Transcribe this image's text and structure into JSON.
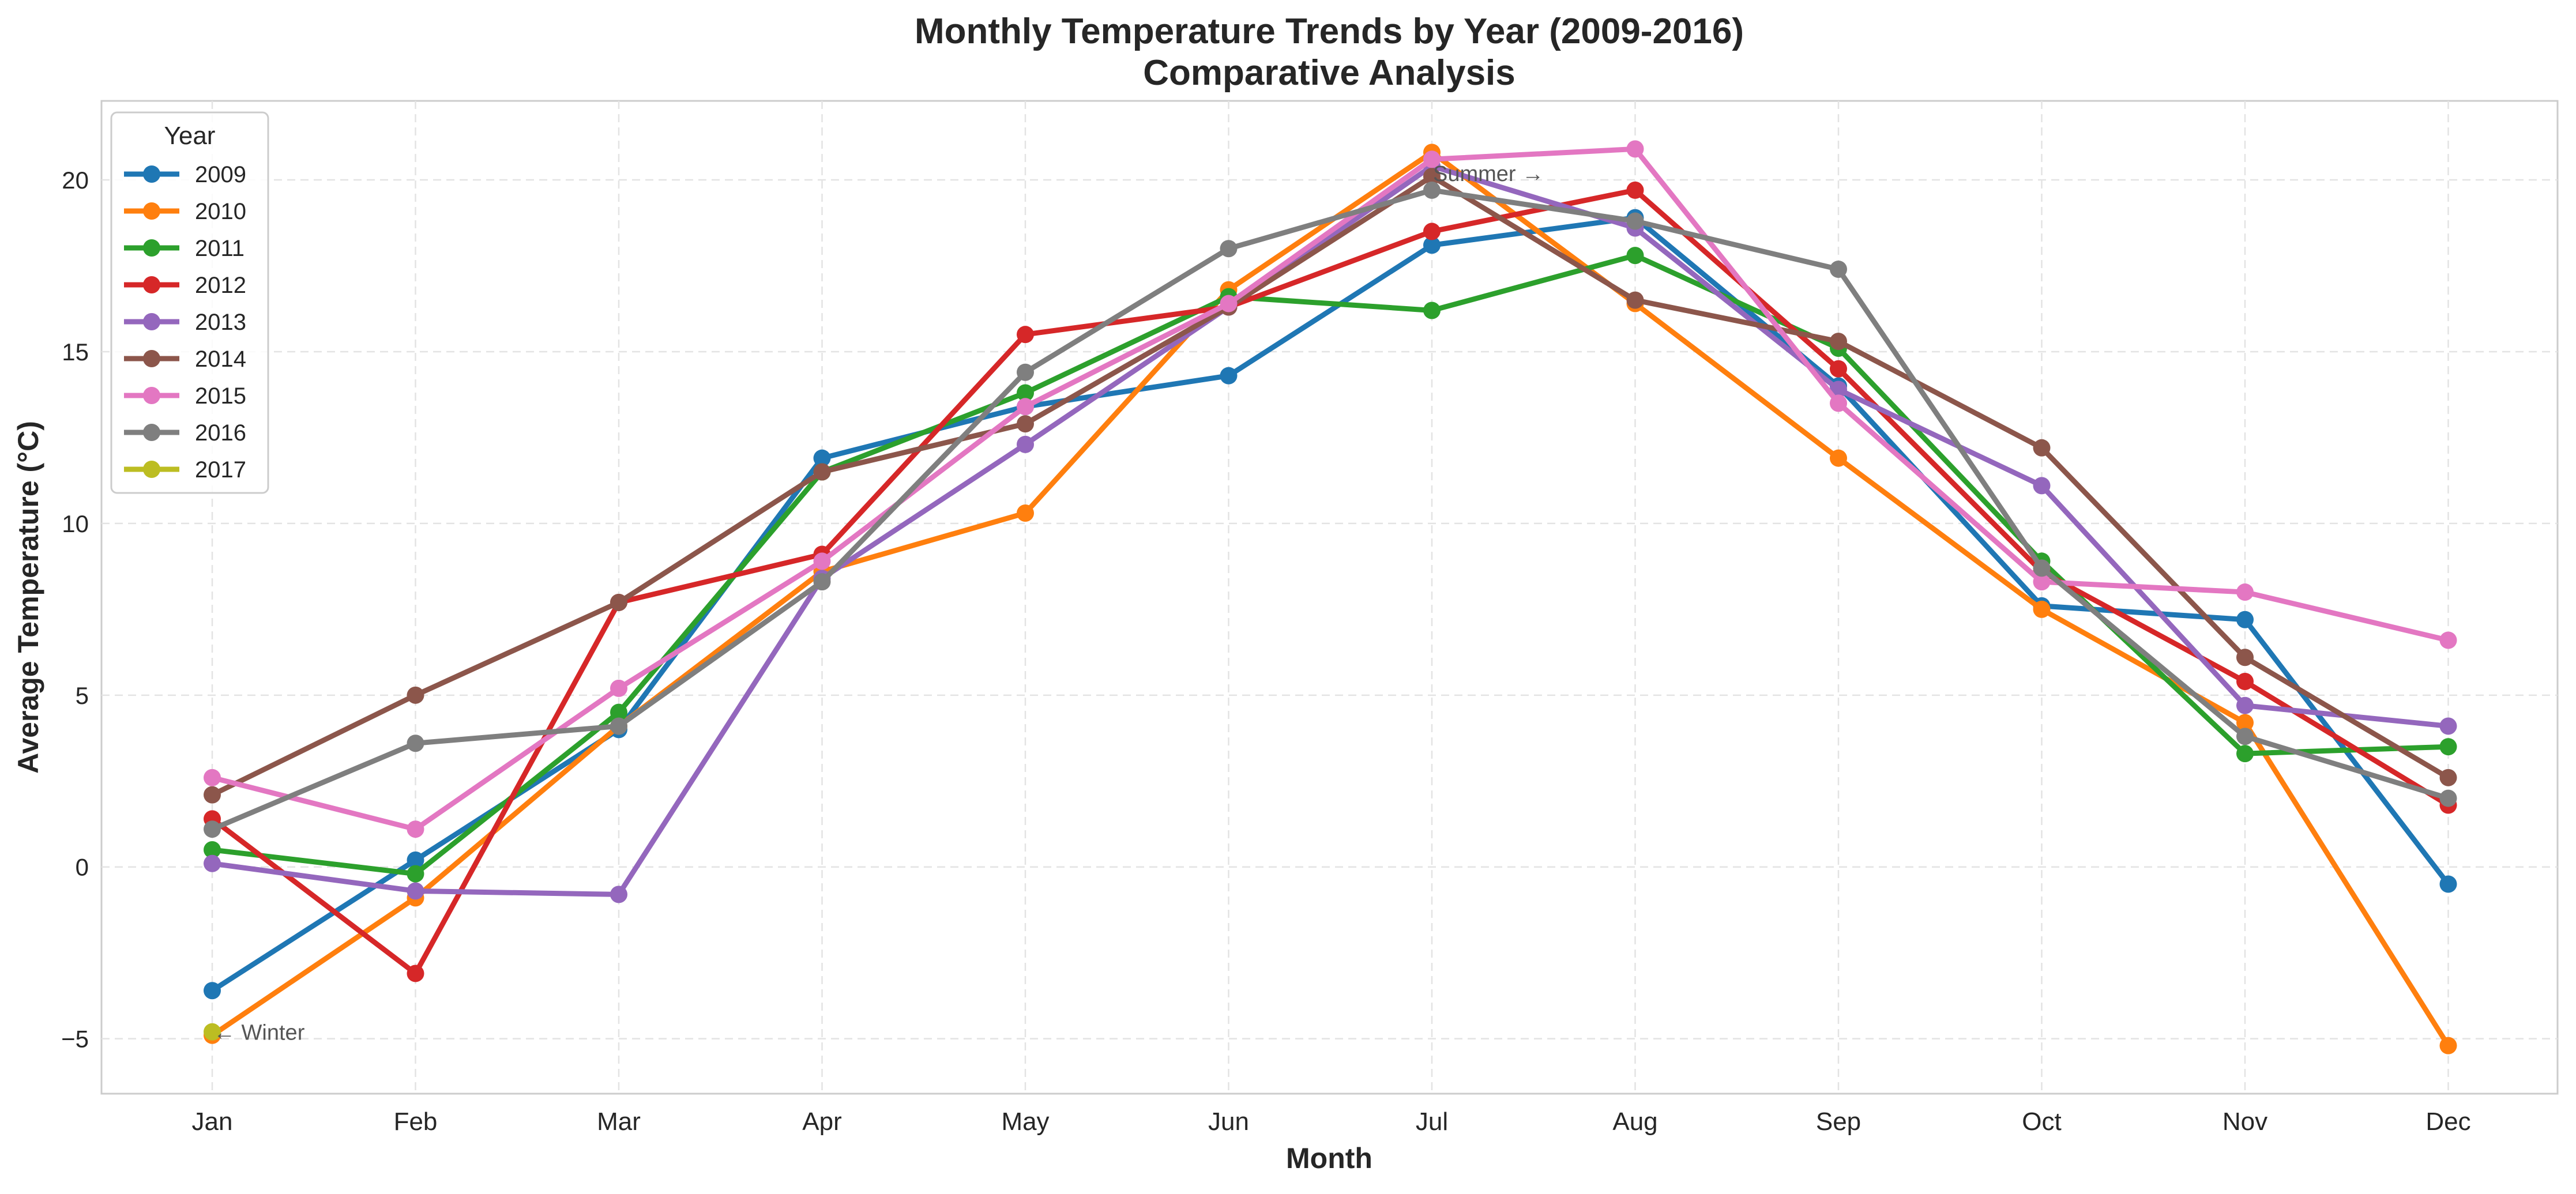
{
  "chart_data": {
    "type": "line",
    "title": "Monthly Temperature Trends by Year (2009-2016)",
    "subtitle": "Comparative Analysis",
    "xlabel": "Month",
    "ylabel": "Average Temperature (°C)",
    "categories": [
      "Jan",
      "Feb",
      "Mar",
      "Apr",
      "May",
      "Jun",
      "Jul",
      "Aug",
      "Sep",
      "Oct",
      "Nov",
      "Dec"
    ],
    "ylim": [
      -6.6,
      22.3
    ],
    "yticks": [
      -5,
      0,
      5,
      10,
      15,
      20
    ],
    "ytick_labels": [
      "−5",
      "0",
      "5",
      "10",
      "15",
      "20"
    ],
    "grid": true,
    "legend": {
      "title": "Year",
      "placement": "top-left"
    },
    "series": [
      {
        "name": "2009",
        "color": "#1f77b4",
        "values": [
          -3.6,
          0.2,
          4.0,
          11.9,
          13.4,
          14.3,
          18.1,
          18.9,
          14.0,
          7.6,
          7.2,
          -0.5
        ]
      },
      {
        "name": "2010",
        "color": "#ff7f0e",
        "values": [
          -4.9,
          -0.9,
          4.1,
          8.6,
          10.3,
          16.8,
          20.8,
          16.4,
          11.9,
          7.5,
          4.2,
          -5.2
        ]
      },
      {
        "name": "2011",
        "color": "#2ca02c",
        "values": [
          0.5,
          -0.2,
          4.5,
          11.5,
          13.8,
          16.6,
          16.2,
          17.8,
          15.1,
          8.9,
          3.3,
          3.5
        ]
      },
      {
        "name": "2012",
        "color": "#d62728",
        "values": [
          1.4,
          -3.1,
          7.7,
          9.1,
          15.5,
          16.3,
          18.5,
          19.7,
          14.5,
          8.6,
          5.4,
          1.8
        ]
      },
      {
        "name": "2013",
        "color": "#9467bd",
        "values": [
          0.1,
          -0.7,
          -0.8,
          8.4,
          12.3,
          16.3,
          20.4,
          18.6,
          13.9,
          11.1,
          4.7,
          4.1
        ]
      },
      {
        "name": "2014",
        "color": "#8c564b",
        "values": [
          2.1,
          5.0,
          7.7,
          11.5,
          12.9,
          16.3,
          20.1,
          16.5,
          15.3,
          12.2,
          6.1,
          2.6
        ]
      },
      {
        "name": "2015",
        "color": "#e377c2",
        "values": [
          2.6,
          1.1,
          5.2,
          8.9,
          13.4,
          16.4,
          20.6,
          20.9,
          13.5,
          8.3,
          8.0,
          6.6
        ]
      },
      {
        "name": "2016",
        "color": "#7f7f7f",
        "values": [
          1.1,
          3.6,
          4.1,
          8.3,
          14.4,
          18.0,
          19.7,
          18.8,
          17.4,
          8.7,
          3.8,
          2.0
        ]
      },
      {
        "name": "2017",
        "color": "#bcbd22",
        "values": [
          -4.8,
          null,
          null,
          null,
          null,
          null,
          null,
          null,
          null,
          null,
          null,
          null
        ]
      }
    ],
    "annotations": [
      {
        "text": "← Winter",
        "x": "Jan",
        "y": -4.8
      },
      {
        "text": "Summer →",
        "x": "Jul",
        "y": 20.2
      }
    ]
  }
}
